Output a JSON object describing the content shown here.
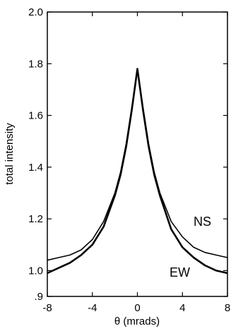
{
  "chart_data": {
    "type": "line",
    "title": "",
    "xlabel": "θ (mrads)",
    "ylabel": "total intensity",
    "xlim": [
      -8,
      8
    ],
    "ylim": [
      0.9,
      2.0
    ],
    "x_ticks": [
      -8,
      -4,
      0,
      4,
      8
    ],
    "x_tick_labels": [
      "-8",
      "-4",
      "0",
      "4",
      "8"
    ],
    "y_ticks": [
      0.9,
      1.0,
      1.2,
      1.4,
      1.6,
      1.8,
      2.0
    ],
    "y_tick_labels": [
      ".9",
      "1.0",
      "1.2",
      "1.4",
      "1.6",
      "1.8",
      "2.0"
    ],
    "grid": false,
    "legend": "none",
    "series": [
      {
        "name": "NS",
        "x": [
          -8,
          -7,
          -6,
          -5,
          -4,
          -3,
          -2,
          -1.5,
          -1,
          -0.5,
          0,
          0.5,
          1,
          1.5,
          2,
          3,
          4,
          5,
          6,
          7,
          8
        ],
        "y": [
          1.04,
          1.05,
          1.06,
          1.08,
          1.12,
          1.19,
          1.3,
          1.38,
          1.49,
          1.63,
          1.78,
          1.63,
          1.49,
          1.38,
          1.3,
          1.19,
          1.13,
          1.09,
          1.07,
          1.06,
          1.05
        ]
      },
      {
        "name": "EW",
        "x": [
          -8,
          -7,
          -6,
          -5,
          -4,
          -3,
          -2,
          -1.5,
          -1,
          -0.5,
          0,
          0.5,
          1,
          1.5,
          2,
          3,
          4,
          5,
          6,
          7,
          8
        ],
        "y": [
          0.99,
          1.01,
          1.03,
          1.06,
          1.1,
          1.17,
          1.29,
          1.37,
          1.48,
          1.62,
          1.78,
          1.62,
          1.48,
          1.37,
          1.29,
          1.16,
          1.09,
          1.05,
          1.02,
          1.0,
          0.99
        ]
      }
    ],
    "annotations": [
      "NS",
      "EW"
    ]
  }
}
